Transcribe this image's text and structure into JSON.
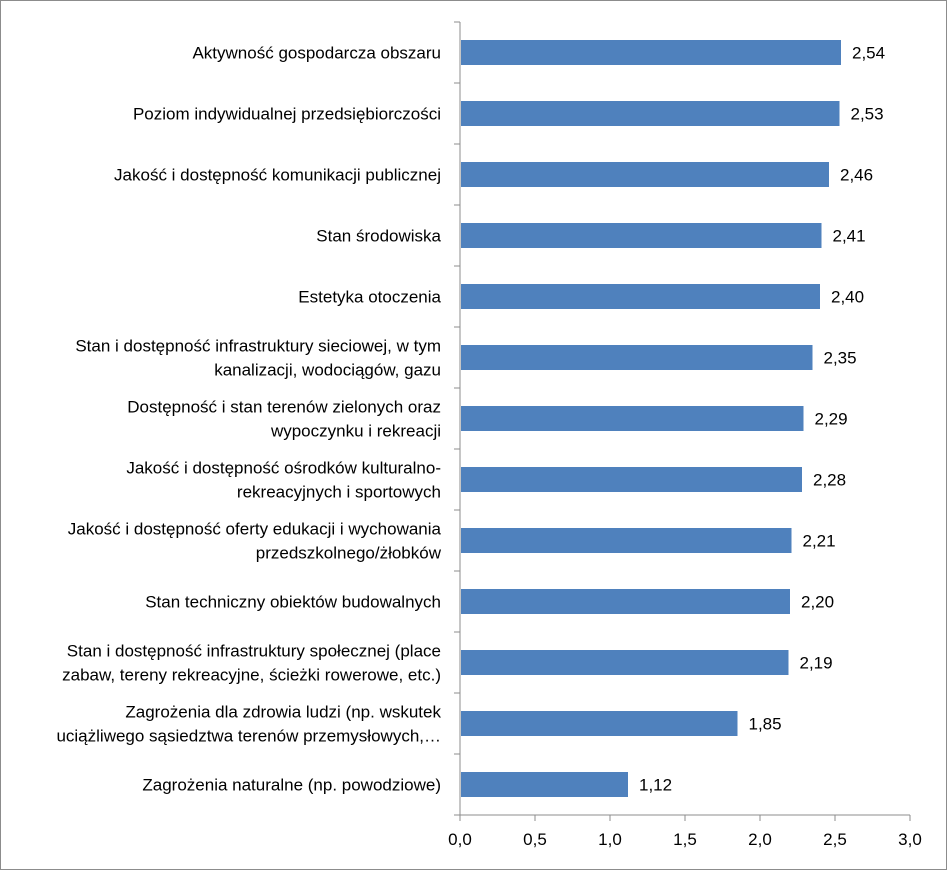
{
  "chart_data": {
    "type": "bar",
    "orientation": "horizontal",
    "title": "",
    "xlabel": "",
    "ylabel": "",
    "xlim": [
      0,
      3.0
    ],
    "ticks": [
      "0,0",
      "0,5",
      "1,0",
      "1,5",
      "2,0",
      "2,5",
      "3,0"
    ],
    "tick_values": [
      0,
      0.5,
      1.0,
      1.5,
      2.0,
      2.5,
      3.0
    ],
    "grid": false,
    "legend": "none",
    "bar_color": "#4f81bd",
    "categories": [
      [
        "Aktywność gospodarcza obszaru"
      ],
      [
        "Poziom indywidualnej przedsiębiorczości"
      ],
      [
        "Jakość i dostępność komunikacji publicznej"
      ],
      [
        "Stan środowiska"
      ],
      [
        "Estetyka otoczenia"
      ],
      [
        "Stan i dostępność infrastruktury sieciowej, w tym",
        "kanalizacji, wodociągów, gazu"
      ],
      [
        "Dostępność i stan terenów zielonych oraz",
        "wypoczynku i rekreacji"
      ],
      [
        "Jakość i dostępność ośrodków kulturalno-",
        "rekreacyjnych i sportowych"
      ],
      [
        "Jakość i dostępność oferty edukacji i wychowania",
        "przedszkolnego/żłobków"
      ],
      [
        "Stan techniczny obiektów budowalnych"
      ],
      [
        "Stan i dostępność infrastruktury społecznej (place",
        "zabaw, tereny rekreacyjne, ścieżki rowerowe, etc.)"
      ],
      [
        "Zagrożenia dla zdrowia ludzi (np. wskutek",
        "uciążliwego sąsiedztwa terenów przemysłowych,…"
      ],
      [
        "Zagrożenia naturalne (np. powodziowe)"
      ]
    ],
    "values": [
      2.54,
      2.53,
      2.46,
      2.41,
      2.4,
      2.35,
      2.29,
      2.28,
      2.21,
      2.2,
      2.19,
      1.85,
      1.12
    ],
    "value_labels": [
      "2,54",
      "2,53",
      "2,46",
      "2,41",
      "2,40",
      "2,35",
      "2,29",
      "2,28",
      "2,21",
      "2,20",
      "2,19",
      "1,85",
      "1,12"
    ]
  }
}
